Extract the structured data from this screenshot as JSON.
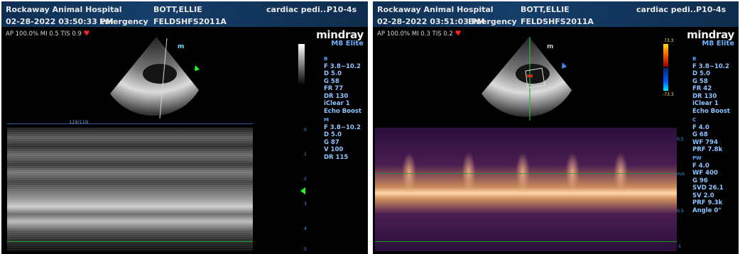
{
  "left": {
    "header": {
      "hospital": "Rockaway Animal Hospital",
      "patient": "BOTT,ELLIE",
      "study": "cardiac pedi...",
      "probe": "P10-4s",
      "datetime": "02-28-2022 03:50:33 PM",
      "mode": "Emergency",
      "operator": "FELDSHFS2011A"
    },
    "status": "AP 100.0%  MI 0.5  TIS 0.9",
    "brand": {
      "logo": "mindray",
      "model": "M8 Elite"
    },
    "b_params": [
      "B",
      "F 3.8~10.2",
      "D 5.0",
      "G 58",
      "FR 77",
      "DR 130",
      "iClear 1",
      "Echo Boost"
    ],
    "m_params": [
      "M",
      "F 3.8~10.2",
      "D 5.0",
      "G 87",
      "V 100",
      "DR 115"
    ],
    "frame_counter": "119/119",
    "depth_ticks": [
      "0",
      "1",
      "2",
      "3",
      "4",
      "5"
    ]
  },
  "right": {
    "header": {
      "hospital": "Rockaway Animal Hospital",
      "patient": "BOTT,ELLIE",
      "study": "cardiac pedi...",
      "probe": "P10-4s",
      "datetime": "02-28-2022 03:51:03 PM",
      "mode": "Emergency",
      "operator": "FELDSHFS2011A"
    },
    "status": "AP 100.0%  MI 0.3  TIS 0.2",
    "brand": {
      "logo": "mindray",
      "model": "M8 Elite"
    },
    "b_params": [
      "B",
      "F 3.8~10.2",
      "D 5.0",
      "G 58",
      "FR 42",
      "DR 130",
      "iClear 1",
      "Echo Boost"
    ],
    "c_params": [
      "C",
      "F 4.0",
      "G 68",
      "WF 794",
      "PRF 7.8k"
    ],
    "pw_params": [
      "PW",
      "F 4.0",
      "WF 400",
      "G 96",
      "SVD 26.1",
      "SV 2.0",
      "PRF 9.3k",
      "Angle 0°"
    ],
    "color_scale": {
      "top": "73.3",
      "bottom": "-73.3"
    },
    "velocity_axis": {
      "unit": "m/s",
      "top": "0.5",
      "bottom": "-0.5",
      "lowest": "-1"
    }
  },
  "colors": {
    "header_bg": "#153e6a",
    "param_blue": "#58a7ff",
    "heart": "#ff2020",
    "cursor_green": "#1a9e2b"
  }
}
